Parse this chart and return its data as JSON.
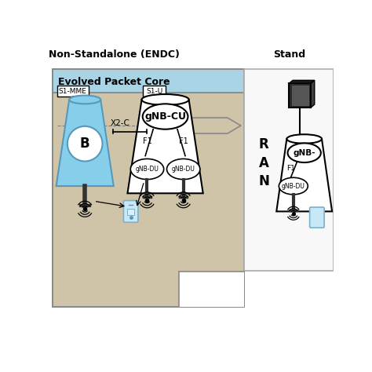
{
  "title_left": "Non-Standalone (ENDC)",
  "title_right": "Stand",
  "bg_color": "#ffffff",
  "epc_bg": "#a8d4e6",
  "ran_bg": "#cfc4a8",
  "right_bg": "#f8f8f8",
  "epc_label": "Evolved Packet Core",
  "s1mme_label": "S1-MME",
  "s1u_label": "S1-U",
  "x2c_label": "X2-C",
  "ran_label": "R\nA\nN",
  "enb_label": "B",
  "gnbcu_label": "gNB-CU",
  "gnbdu1_label": "gNB-DU",
  "gnbdu2_label": "gNB-DU",
  "gnb_right_label": "gNB-",
  "gnbdu_right_label": "gNB-DU",
  "f1_left": "F1",
  "f1_right": "F1",
  "f1_right2": "F1"
}
